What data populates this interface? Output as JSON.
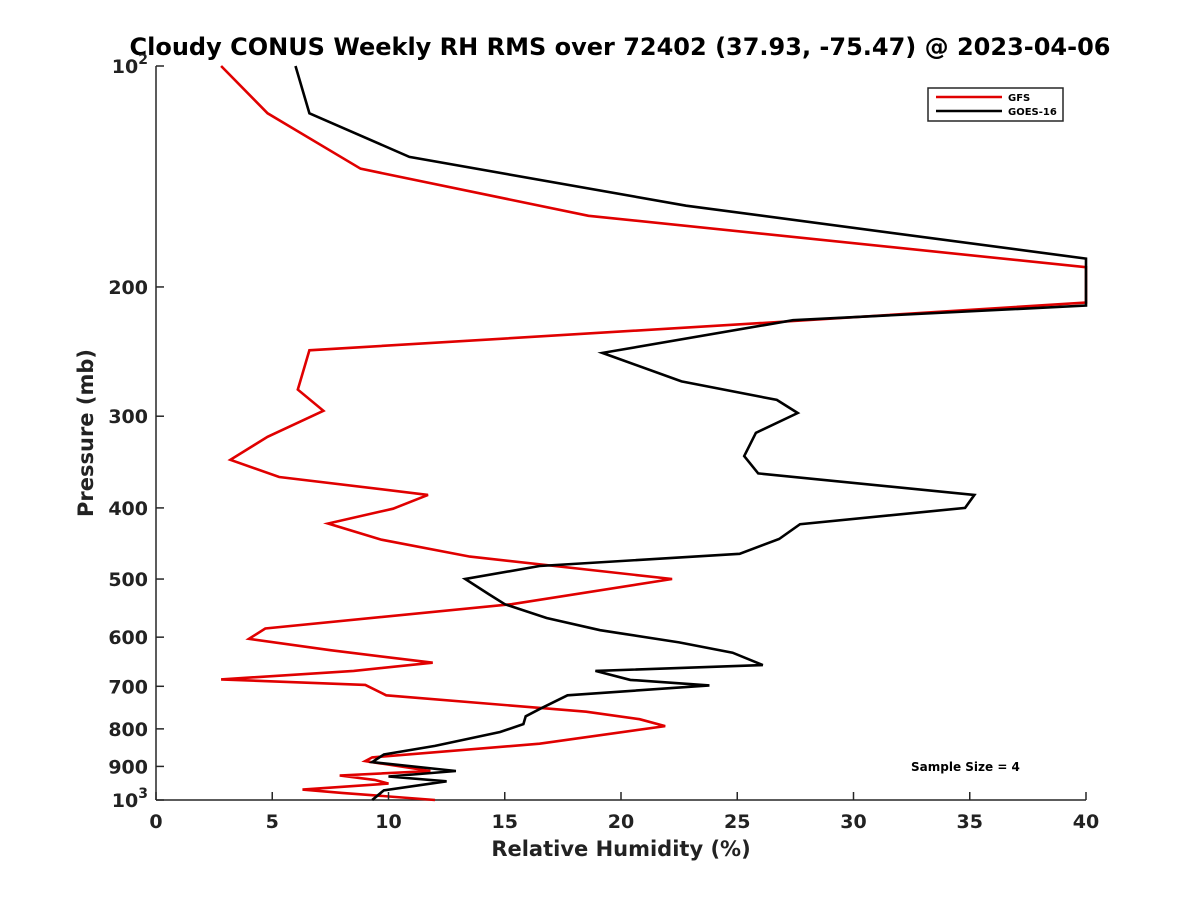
{
  "chart_data": {
    "type": "line",
    "title": "Cloudy CONUS Weekly RH RMS over 72402 (37.93, -75.47) @ 2023-04-06",
    "xlabel": "Relative Humidity (%)",
    "ylabel": "Pressure (mb)",
    "xlim": [
      0,
      40
    ],
    "ylim": [
      100,
      1000
    ],
    "yscale": "log",
    "y_reversed": true,
    "xticks": [
      "0",
      "5",
      "10",
      "15",
      "20",
      "25",
      "30",
      "35",
      "40"
    ],
    "xtick_values": [
      0,
      5,
      10,
      15,
      20,
      25,
      30,
      35,
      40
    ],
    "yticks": [
      {
        "value": 100,
        "base": "10",
        "exp": "2"
      },
      {
        "value": 200,
        "base": "200",
        "exp": ""
      },
      {
        "value": 300,
        "base": "300",
        "exp": ""
      },
      {
        "value": 400,
        "base": "400",
        "exp": ""
      },
      {
        "value": 500,
        "base": "500",
        "exp": ""
      },
      {
        "value": 600,
        "base": "600",
        "exp": ""
      },
      {
        "value": 700,
        "base": "700",
        "exp": ""
      },
      {
        "value": 800,
        "base": "800",
        "exp": ""
      },
      {
        "value": 900,
        "base": "900",
        "exp": ""
      },
      {
        "value": 1000,
        "base": "10",
        "exp": "3"
      }
    ],
    "legend_position": "top-right",
    "annotation": "Sample Size = 4",
    "grid": false,
    "series": [
      {
        "name": "GFS",
        "color": "#e00000",
        "points": [
          [
            2.8,
            100
          ],
          [
            4.8,
            116
          ],
          [
            8.8,
            138
          ],
          [
            18.6,
            160
          ],
          [
            40,
            188
          ],
          [
            40,
            210
          ],
          [
            26,
            224
          ],
          [
            6.6,
            244
          ],
          [
            6.1,
            276
          ],
          [
            7.2,
            295
          ],
          [
            4.8,
            320
          ],
          [
            3.2,
            344
          ],
          [
            5.3,
            363
          ],
          [
            11.7,
            384
          ],
          [
            10.2,
            401
          ],
          [
            7.4,
            420
          ],
          [
            9.7,
            442
          ],
          [
            13.5,
            466
          ],
          [
            22.2,
            500
          ],
          [
            15.3,
            541
          ],
          [
            4.7,
            584
          ],
          [
            4.0,
            603
          ],
          [
            7.5,
            625
          ],
          [
            11.9,
            650
          ],
          [
            8.5,
            667
          ],
          [
            2.8,
            685
          ],
          [
            9.0,
            697
          ],
          [
            9.9,
            720
          ],
          [
            18.5,
            758
          ],
          [
            20.8,
            776
          ],
          [
            21.9,
            793
          ],
          [
            16.5,
            838
          ],
          [
            9.3,
            875
          ],
          [
            9.0,
            885
          ],
          [
            11.8,
            913
          ],
          [
            7.9,
            926
          ],
          [
            9.4,
            939
          ],
          [
            10.0,
            950
          ],
          [
            6.3,
            968
          ],
          [
            8.0,
            978
          ],
          [
            12.0,
            1000
          ]
        ]
      },
      {
        "name": "GOES-16",
        "color": "#000000",
        "points": [
          [
            6.0,
            100
          ],
          [
            6.6,
            116
          ],
          [
            10.9,
            133
          ],
          [
            22.8,
            155
          ],
          [
            40,
            183
          ],
          [
            40,
            212
          ],
          [
            27.4,
            222
          ],
          [
            19.2,
            246
          ],
          [
            22.6,
            269
          ],
          [
            26.7,
            285
          ],
          [
            27.6,
            297
          ],
          [
            25.8,
            316
          ],
          [
            25.3,
            340
          ],
          [
            25.9,
            359
          ],
          [
            35.2,
            384
          ],
          [
            34.8,
            400
          ],
          [
            27.7,
            421
          ],
          [
            26.8,
            441
          ],
          [
            25.1,
            462
          ],
          [
            16.5,
            480
          ],
          [
            13.3,
            500
          ],
          [
            14.3,
            524
          ],
          [
            15.0,
            541
          ],
          [
            16.8,
            565
          ],
          [
            19.1,
            587
          ],
          [
            22.5,
            610
          ],
          [
            24.8,
            630
          ],
          [
            26.1,
            655
          ],
          [
            18.9,
            667
          ],
          [
            20.4,
            686
          ],
          [
            23.8,
            698
          ],
          [
            17.7,
            720
          ],
          [
            16.5,
            752
          ],
          [
            15.9,
            769
          ],
          [
            15.8,
            788
          ],
          [
            14.8,
            808
          ],
          [
            12.0,
            844
          ],
          [
            9.8,
            867
          ],
          [
            9.3,
            888
          ],
          [
            12.9,
            913
          ],
          [
            10.0,
            929
          ],
          [
            12.5,
            943
          ],
          [
            9.8,
            970
          ],
          [
            9.3,
            1000
          ]
        ]
      }
    ]
  }
}
